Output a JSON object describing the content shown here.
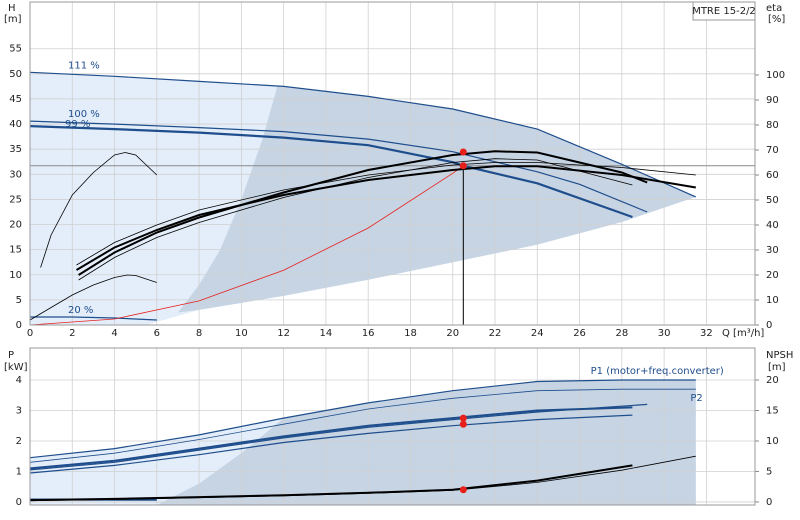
{
  "chart_data": [
    {
      "type": "line",
      "box_label": "MTRE 15-2/2",
      "ylabel": "H",
      "yunit": "[m]",
      "y2label": "eta",
      "y2unit": "[%]",
      "xlabel": "Q [m³/h]",
      "xlim": [
        0,
        34.3
      ],
      "xticks": [
        0,
        2,
        4,
        6,
        8,
        10,
        12,
        14,
        16,
        18,
        20,
        22,
        24,
        26,
        28,
        30,
        32
      ],
      "show_xtick_labels": true,
      "ylim": [
        0,
        64.3
      ],
      "yticks": [
        0,
        5,
        10,
        15,
        20,
        25,
        30,
        35,
        40,
        45,
        50,
        55
      ],
      "y2lim": [
        0,
        129.2
      ],
      "y2ticks": [
        0,
        10,
        20,
        30,
        40,
        50,
        60,
        70,
        80,
        90,
        100
      ],
      "grid": true,
      "areas": [
        {
          "color": "#e4eefa",
          "x": [
            0,
            4,
            8,
            11.7,
            16,
            20,
            24,
            28,
            31.5,
            28,
            24,
            20,
            16,
            12,
            8,
            5.5,
            0
          ],
          "y": [
            50.3,
            49.5,
            48.5,
            47.5,
            45.5,
            43,
            39,
            32,
            25.5,
            20.5,
            16,
            12.5,
            9,
            5.8,
            3,
            0,
            0
          ]
        },
        {
          "color": "#c6d4e4",
          "x": [
            7,
            8,
            9,
            10,
            11,
            11.7,
            16,
            20,
            24,
            28,
            31.5,
            28,
            24,
            20,
            16,
            12,
            8
          ],
          "y": [
            2.5,
            8,
            15,
            25,
            37,
            47.5,
            45.5,
            43,
            39,
            32,
            25.5,
            20.5,
            16,
            12.5,
            9,
            5.8,
            3
          ]
        }
      ],
      "hline": {
        "value": 31.7,
        "color": "#8a8a8a"
      },
      "vline": {
        "value": 20.5,
        "color": "#000000"
      },
      "series": [
        {
          "name": "111 %",
          "label_pos": "start",
          "color": "#1f4e8c",
          "width": 1.2,
          "x": [
            0,
            4,
            8,
            12,
            16,
            20,
            24,
            28,
            31.5
          ],
          "values": [
            50.3,
            49.5,
            48.5,
            47.5,
            45.5,
            43,
            39,
            32,
            25.5
          ]
        },
        {
          "name": "100 %",
          "label_pos": "start",
          "color": "#1f4e8c",
          "width": 1.2,
          "x": [
            0,
            4,
            8,
            12,
            16,
            20,
            24,
            26,
            29.2
          ],
          "values": [
            40.6,
            40,
            39.3,
            38.5,
            37,
            34.5,
            30.5,
            28,
            22.5
          ]
        },
        {
          "name": "99 %",
          "label_pos": "start-low",
          "color": "#1f4e8c",
          "width": 2.2,
          "x": [
            0,
            4,
            8,
            12,
            16,
            20,
            20.5,
            24,
            28.5
          ],
          "values": [
            39.6,
            39,
            38.3,
            37.3,
            35.8,
            32.4,
            31.7,
            28.2,
            21.5
          ]
        },
        {
          "name": "20 %",
          "label_pos": "start",
          "color": "#1f4e8c",
          "width": 1.2,
          "x": [
            0,
            2,
            4,
            6
          ],
          "values": [
            1.6,
            1.6,
            1.4,
            1.0
          ]
        },
        {
          "color": "#e8201c",
          "width": 0.8,
          "x": [
            0,
            4,
            8,
            12,
            16,
            20,
            20.5
          ],
          "values": [
            0,
            1.2,
            4.8,
            10.9,
            19.3,
            30.2,
            31.7
          ]
        },
        {
          "axis": "y2",
          "color": "#000000",
          "width": 0.8,
          "x": [
            2.2,
            4,
            6,
            8,
            12,
            16,
            20,
            22,
            24,
            28,
            31.5
          ],
          "values": [
            24,
            33,
            40,
            46,
            54,
            60,
            64,
            65,
            65,
            63,
            60
          ]
        },
        {
          "axis": "y2",
          "color": "#000000",
          "width": 2,
          "x": [
            2.2,
            4,
            6,
            8,
            12,
            16,
            20,
            22,
            24,
            28,
            31.5
          ],
          "values": [
            22,
            31,
            38,
            44,
            52,
            58,
            62,
            63.5,
            63.5,
            60,
            55
          ]
        },
        {
          "axis": "y2",
          "color": "#000000",
          "width": 2,
          "x": [
            2.3,
            4,
            6,
            8,
            12,
            16,
            20,
            22,
            24,
            28,
            29.2
          ],
          "values": [
            20,
            29,
            37,
            43,
            53,
            62,
            68,
            69.5,
            69,
            61,
            57
          ]
        },
        {
          "axis": "y2",
          "color": "#000000",
          "width": 0.8,
          "x": [
            2.3,
            4,
            6,
            8,
            12,
            16,
            20,
            22,
            24,
            28.5
          ],
          "values": [
            18,
            27,
            35,
            41,
            51,
            59,
            65,
            66.5,
            66,
            56
          ]
        },
        {
          "axis": "y2",
          "color": "#000000",
          "width": 0.8,
          "x": [
            0.5,
            1,
            2,
            3,
            4,
            4.5,
            5,
            6
          ],
          "values": [
            23,
            36,
            52,
            61,
            68,
            69,
            68,
            60
          ]
        },
        {
          "axis": "y2",
          "color": "#000000",
          "width": 0.8,
          "x": [
            0,
            1,
            2,
            3,
            4,
            4.6,
            5,
            6
          ],
          "values": [
            2,
            7,
            12,
            16,
            19,
            20,
            19.8,
            17
          ]
        }
      ],
      "points": [
        {
          "color": "#e8201c",
          "x": [
            20.5
          ],
          "values": [
            31.7
          ]
        },
        {
          "axis": "y2",
          "color": "#e8201c",
          "x": [
            20.5
          ],
          "values": [
            69.2
          ]
        }
      ]
    },
    {
      "type": "line",
      "ylabel": "P",
      "yunit": "[kW]",
      "y2label": "NPSH",
      "y2unit": "[m]",
      "xlim": [
        0,
        34.3
      ],
      "xticks": [
        0,
        2,
        4,
        6,
        8,
        10,
        12,
        14,
        16,
        18,
        20,
        22,
        24,
        26,
        28,
        30,
        32
      ],
      "show_xtick_labels": false,
      "ylim": [
        -0.1,
        5.05
      ],
      "yticks": [
        0,
        1,
        2,
        3,
        4
      ],
      "y2lim": [
        -0.5,
        25.25
      ],
      "y2ticks": [
        0,
        5,
        10,
        15,
        20
      ],
      "grid": true,
      "areas": [
        {
          "color": "#e4eefa",
          "x": [
            0,
            4,
            8,
            12,
            16,
            20,
            24,
            28,
            31.5,
            31.5,
            0
          ],
          "y": [
            1.45,
            1.75,
            2.2,
            2.75,
            3.25,
            3.65,
            3.95,
            4.0,
            4.0,
            -0.1,
            -0.1
          ]
        },
        {
          "color": "#c6d4e4",
          "x": [
            6,
            8,
            10,
            12,
            16,
            20,
            24,
            28,
            31.5,
            31.5
          ],
          "y": [
            -0.1,
            0.6,
            1.6,
            2.75,
            3.25,
            3.65,
            3.95,
            4.0,
            4.0,
            -0.1
          ]
        }
      ],
      "series": [
        {
          "name": "P1 (motor+freq.converter)",
          "label_pos": "end-above",
          "color": "#1f4e8c",
          "width": 1.2,
          "x": [
            0,
            4,
            8,
            12,
            16,
            20,
            24,
            28,
            31.5
          ],
          "values": [
            1.45,
            1.75,
            2.2,
            2.75,
            3.25,
            3.65,
            3.95,
            4.0,
            4.0
          ]
        },
        {
          "name": "P2",
          "label_pos": "end-below",
          "color": "#1f4e8c",
          "width": 0.8,
          "x": [
            0,
            4,
            8,
            12,
            16,
            20,
            24,
            28,
            31.5
          ],
          "values": [
            1.3,
            1.6,
            2.05,
            2.55,
            3.05,
            3.4,
            3.65,
            3.7,
            3.7
          ]
        },
        {
          "color": "#1f4e8c",
          "width": 2,
          "x": [
            0,
            4,
            8,
            12,
            16,
            20,
            24,
            28.5
          ],
          "values": [
            1.1,
            1.35,
            1.75,
            2.15,
            2.5,
            2.75,
            3.0,
            3.1
          ]
        },
        {
          "color": "#1f4e8c",
          "width": 1.2,
          "x": [
            0,
            4,
            8,
            12,
            16,
            20,
            24,
            29.2
          ],
          "values": [
            1.05,
            1.3,
            1.7,
            2.1,
            2.45,
            2.7,
            2.95,
            3.2
          ]
        },
        {
          "color": "#1f4e8c",
          "width": 1.2,
          "x": [
            0,
            4,
            8,
            12,
            16,
            20,
            24,
            28.5
          ],
          "values": [
            0.95,
            1.2,
            1.55,
            1.95,
            2.25,
            2.5,
            2.7,
            2.85
          ]
        },
        {
          "color": "#1f4e8c",
          "width": 2,
          "x": [
            0,
            6
          ],
          "values": [
            0.08,
            0.07
          ]
        },
        {
          "axis": "y2",
          "color": "#000000",
          "width": 2,
          "x": [
            0,
            4,
            8,
            12,
            16,
            20,
            24,
            28.5
          ],
          "values": [
            0.3,
            0.5,
            0.8,
            1.1,
            1.5,
            2,
            3.5,
            6
          ]
        },
        {
          "axis": "y2",
          "color": "#000000",
          "width": 0.8,
          "x": [
            0,
            4,
            8,
            12,
            16,
            20,
            24,
            28,
            31.5
          ],
          "values": [
            0.2,
            0.4,
            0.7,
            1.0,
            1.4,
            1.9,
            3.2,
            5.2,
            7.5
          ]
        }
      ],
      "points": [
        {
          "color": "#e8201c",
          "x": [
            20.5,
            20.5
          ],
          "values": [
            2.75,
            2.55
          ]
        },
        {
          "axis": "y2",
          "color": "#e8201c",
          "x": [
            20.5
          ],
          "values": [
            2.0
          ]
        }
      ]
    }
  ]
}
